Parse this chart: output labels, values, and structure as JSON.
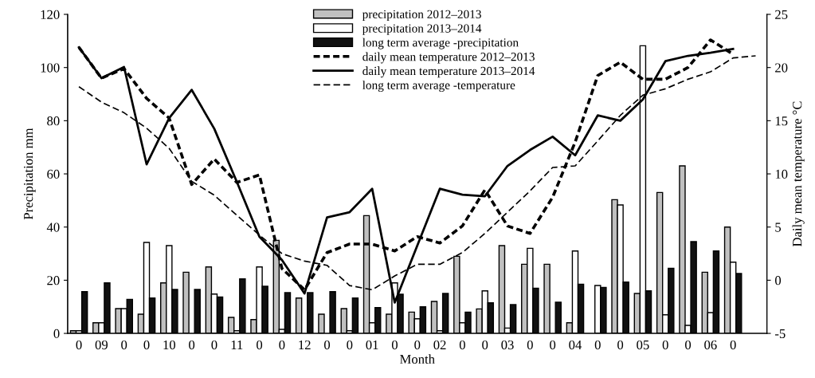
{
  "chart_data": {
    "type": "bar",
    "xlabel": "Month",
    "ylabel": "Precipitation mm",
    "y2label": "Daily mean temperature °C",
    "categories": [
      "0",
      "09",
      "0",
      "0",
      "10",
      "0",
      "0",
      "11",
      "0",
      "0",
      "12",
      "0",
      "0",
      "01",
      "0",
      "0",
      "02",
      "0",
      "0",
      "03",
      "0",
      "0",
      "04",
      "0",
      "0",
      "05",
      "0",
      "0",
      "06",
      "0",
      null
    ],
    "ylim": [
      0,
      120
    ],
    "yticks": [
      0,
      20,
      40,
      60,
      80,
      100,
      120
    ],
    "y2lim": [
      -5,
      25
    ],
    "y2ticks": [
      -5,
      0,
      5,
      10,
      15,
      20,
      25
    ],
    "legend": "top",
    "series": [
      {
        "name": "precipitation 2012–2013",
        "color": "#c0c0c0",
        "values": [
          1,
          4,
          9.3,
          7.2,
          19,
          23,
          25,
          6,
          5.2,
          35,
          13.3,
          7.2,
          9.3,
          44.3,
          7.2,
          8,
          12,
          29,
          9.2,
          33,
          26,
          26,
          4,
          null,
          50.3,
          15,
          53,
          63,
          23,
          40,
          null
        ]
      },
      {
        "name": "precipitation 2013–2014",
        "color": "#ffffff",
        "values": [
          1,
          4,
          9.3,
          34.2,
          33,
          null,
          14.8,
          1,
          25,
          1.5,
          null,
          null,
          1,
          4,
          19,
          5.5,
          1,
          4,
          16,
          2,
          32,
          null,
          31,
          18,
          48.3,
          108.2,
          7,
          3,
          7.8,
          26.8,
          null
        ]
      },
      {
        "name": "long term average -precipitation",
        "color": "#111111",
        "values": [
          15.7,
          19,
          12.8,
          13.3,
          16.5,
          16.5,
          13.7,
          20.5,
          17.7,
          15.3,
          15.3,
          15.7,
          13.3,
          9.7,
          14.7,
          10,
          15,
          8,
          11.5,
          10.8,
          17,
          11.7,
          18.5,
          17.3,
          19.3,
          16,
          24.5,
          34.5,
          31,
          22.5,
          null
        ]
      },
      {
        "name": "daily mean temperature 2012–2013",
        "type": "line",
        "axis": "y2",
        "line_style": "dashed",
        "color": "#000000",
        "values": [
          21.9,
          19.0,
          19.9,
          17.1,
          15.25,
          9.0,
          11.4,
          9.2,
          9.9,
          1.1,
          -0.9,
          2.6,
          3.4,
          3.4,
          2.75,
          4.1,
          3.5,
          5.1,
          8.5,
          5.1,
          4.4,
          7.8,
          13.0,
          19.25,
          20.5,
          18.9,
          18.9,
          20.0,
          22.6,
          21.25,
          null
        ]
      },
      {
        "name": "daily mean temperature 2013–2014",
        "type": "line",
        "axis": "y2",
        "line_style": "solid",
        "color": "#000000",
        "values": [
          21.9,
          19.0,
          20.05,
          10.9,
          15.25,
          17.9,
          14.25,
          9.25,
          4.1,
          1.9,
          -1.25,
          5.9,
          6.4,
          8.6,
          -2.1,
          3.25,
          8.6,
          8.05,
          7.9,
          10.75,
          12.25,
          13.5,
          11.75,
          15.5,
          15.0,
          17.0,
          20.6,
          21.1,
          21.4,
          21.75,
          null
        ]
      },
      {
        "name": "long term average -temperature",
        "type": "line",
        "axis": "y2",
        "line_style": "dashed",
        "color": "#000000",
        "values": [
          18.2,
          16.75,
          15.75,
          14.3,
          12.4,
          9.3,
          8.0,
          6.1,
          4.25,
          2.5,
          1.8,
          1.4,
          -0.5,
          -0.9,
          0.4,
          1.5,
          1.5,
          2.6,
          4.4,
          6.4,
          8.4,
          10.6,
          10.75,
          13.1,
          15.5,
          17.4,
          18.0,
          18.9,
          19.6,
          20.9,
          21.1
        ]
      }
    ]
  }
}
